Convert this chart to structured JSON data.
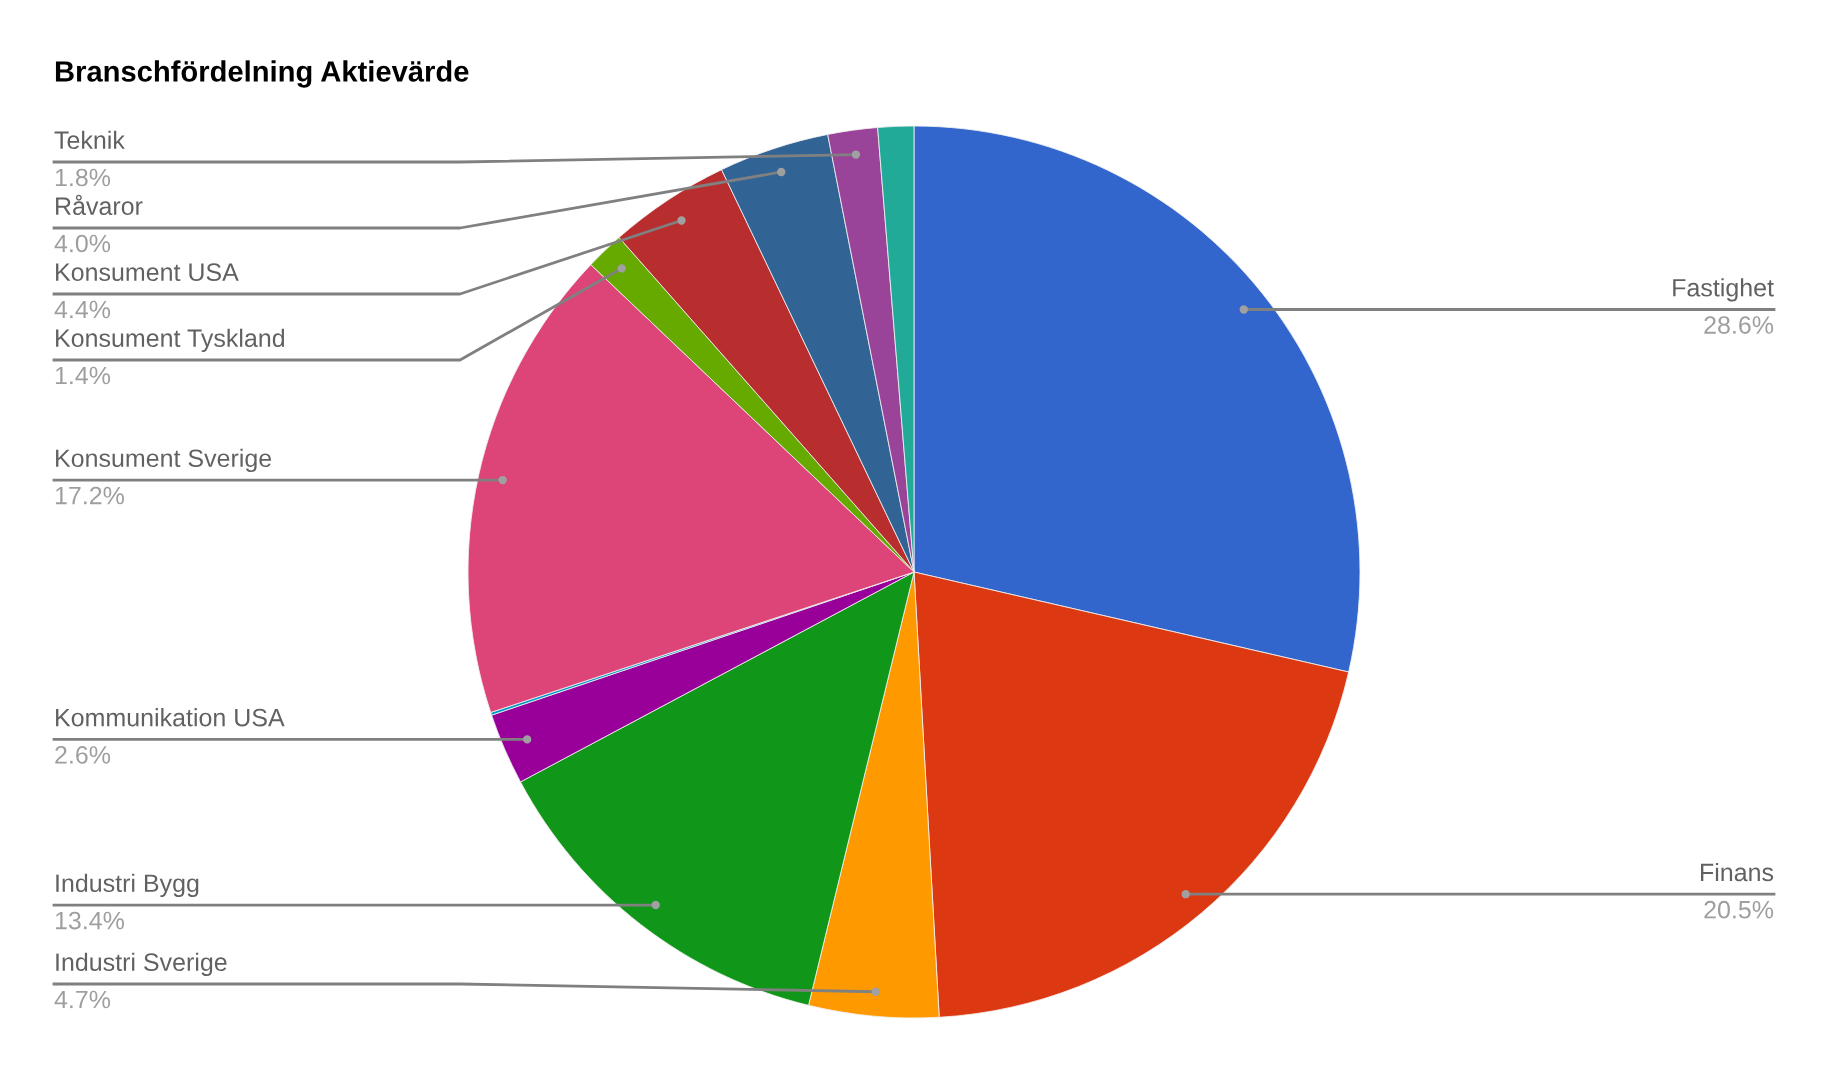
{
  "chart_data": {
    "type": "pie",
    "title": "Branschfördelning Aktievärde",
    "categories": [
      "Fastighet",
      "Finans",
      "Industri Sverige",
      "Industri Bygg",
      "Kommunikation USA",
      null,
      "Konsument Sverige",
      "Konsument Tyskland",
      "Konsument USA",
      "Råvaror",
      "Teknik",
      null
    ],
    "values": [
      28.6,
      20.5,
      4.7,
      13.4,
      2.6,
      0.1,
      17.2,
      1.4,
      4.4,
      4.0,
      1.8,
      1.3
    ],
    "colors": [
      "#3366cc",
      "#dc3912",
      "#ff9900",
      "#109618",
      "#990099",
      "#0099c6",
      "#dd4477",
      "#66aa00",
      "#b82e2e",
      "#316395",
      "#994499",
      "#22aa99"
    ],
    "value_labels": [
      "28.6%",
      "20.5%",
      "4.7%",
      "13.4%",
      "2.6%",
      null,
      "17.2%",
      "1.4%",
      "4.4%",
      "4.0%",
      "1.8%",
      null
    ]
  }
}
